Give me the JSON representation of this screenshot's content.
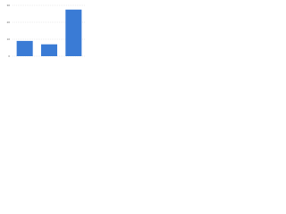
{
  "chart_data": {
    "type": "bar",
    "categories": [
      null,
      null,
      null
    ],
    "values": [
      9,
      7,
      27.5
    ],
    "color": "#3a7bd5",
    "ylim": [
      0,
      30
    ],
    "yticks": [
      0,
      10,
      20,
      30
    ],
    "grid": true
  }
}
